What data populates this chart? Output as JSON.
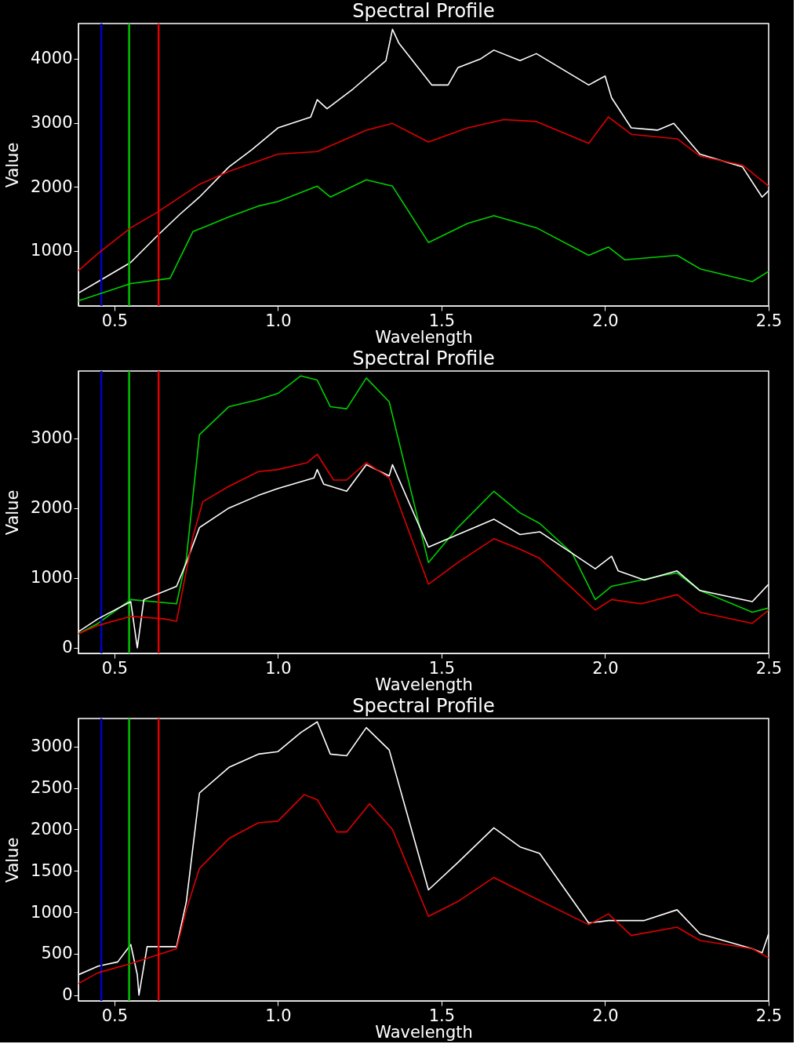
{
  "chart_data": [
    {
      "type": "line",
      "title": "Spectral Profile",
      "xlabel": "Wavelength",
      "ylabel": "Value",
      "xlim": [
        0.39,
        2.5
      ],
      "ylim": [
        140,
        4550
      ],
      "xticks": [
        {
          "value": 0.5,
          "label": "0.5"
        },
        {
          "value": 1,
          "label": "1.0"
        },
        {
          "value": 1.5,
          "label": "1.5"
        },
        {
          "value": 2,
          "label": "2.0"
        },
        {
          "value": 2.5,
          "label": "2.5"
        }
      ],
      "yticks": [
        1000,
        2000,
        3000,
        4000
      ],
      "grid": false,
      "ref_lines": [
        {
          "axis": "x",
          "value": 0.46,
          "color": "#0000c8"
        },
        {
          "axis": "x",
          "value": 0.545,
          "color": "#00c000"
        },
        {
          "axis": "x",
          "value": 0.635,
          "color": "#e00000"
        }
      ],
      "series": [
        {
          "color": "#ffffff",
          "x": [
            0.39,
            0.45,
            0.55,
            0.63,
            0.7,
            0.76,
            0.85,
            0.92,
            1.0,
            1.1,
            1.12,
            1.15,
            1.23,
            1.33,
            1.35,
            1.37,
            1.47,
            1.52,
            1.55,
            1.62,
            1.66,
            1.74,
            1.79,
            1.95,
            2.0,
            2.02,
            2.08,
            2.16,
            2.21,
            2.29,
            2.42,
            2.48,
            2.5
          ],
          "values": [
            340,
            520,
            820,
            1230,
            1570,
            1840,
            2310,
            2580,
            2920,
            3090,
            3360,
            3220,
            3530,
            3970,
            4460,
            4240,
            3590,
            3590,
            3860,
            4000,
            4135,
            3970,
            4080,
            3590,
            3730,
            3390,
            2920,
            2885,
            2990,
            2510,
            2310,
            1840,
            1940
          ]
        },
        {
          "color": "#e00000",
          "x": [
            0.39,
            0.45,
            0.55,
            0.63,
            0.76,
            0.85,
            1.0,
            1.12,
            1.27,
            1.35,
            1.46,
            1.58,
            1.69,
            1.79,
            1.95,
            2.01,
            2.08,
            2.22,
            2.29,
            2.42,
            2.5
          ],
          "values": [
            690,
            960,
            1360,
            1600,
            2040,
            2240,
            2510,
            2550,
            2885,
            2990,
            2700,
            2920,
            3050,
            3020,
            2680,
            3090,
            2820,
            2750,
            2480,
            2340,
            2010
          ]
        },
        {
          "color": "#00d000",
          "x": [
            0.39,
            0.45,
            0.55,
            0.67,
            0.74,
            0.85,
            0.94,
            1.0,
            1.12,
            1.16,
            1.27,
            1.35,
            1.46,
            1.58,
            1.66,
            1.79,
            1.95,
            2.01,
            2.06,
            2.22,
            2.29,
            2.45,
            2.5
          ],
          "values": [
            220,
            320,
            490,
            570,
            1300,
            1530,
            1700,
            1770,
            2010,
            1840,
            2110,
            2010,
            1130,
            1430,
            1550,
            1360,
            930,
            1060,
            860,
            930,
            720,
            520,
            680
          ]
        }
      ]
    },
    {
      "type": "line",
      "title": "Spectral Profile",
      "xlabel": "Wavelength",
      "ylabel": "Value",
      "xlim": [
        0.39,
        2.5
      ],
      "ylim": [
        -80,
        3960
      ],
      "xticks": [
        {
          "value": 0.5,
          "label": "0.5"
        },
        {
          "value": 1,
          "label": "1.0"
        },
        {
          "value": 1.5,
          "label": "1.5"
        },
        {
          "value": 2,
          "label": "2.0"
        },
        {
          "value": 2.5,
          "label": "2.5"
        }
      ],
      "yticks": [
        0,
        1000,
        2000,
        3000
      ],
      "grid": false,
      "ref_lines": [
        {
          "axis": "x",
          "value": 0.46,
          "color": "#0000c8"
        },
        {
          "axis": "x",
          "value": 0.545,
          "color": "#00c000"
        },
        {
          "axis": "x",
          "value": 0.635,
          "color": "#e00000"
        }
      ],
      "series": [
        {
          "color": "#00d000",
          "x": [
            0.39,
            0.45,
            0.55,
            0.69,
            0.72,
            0.76,
            0.85,
            0.94,
            1.0,
            1.07,
            1.12,
            1.16,
            1.21,
            1.27,
            1.34,
            1.46,
            1.55,
            1.66,
            1.74,
            1.8,
            1.9,
            1.97,
            2.02,
            2.18,
            2.22,
            2.29,
            2.45,
            2.5
          ],
          "values": [
            200,
            350,
            690,
            630,
            1280,
            3050,
            3450,
            3550,
            3640,
            3890,
            3830,
            3450,
            3420,
            3860,
            3520,
            1220,
            1720,
            2240,
            1930,
            1780,
            1350,
            690,
            880,
            1040,
            1070,
            820,
            510,
            570
          ]
        },
        {
          "color": "#ffffff",
          "x": [
            0.39,
            0.45,
            0.55,
            0.57,
            0.59,
            0.69,
            0.72,
            0.76,
            0.85,
            0.94,
            1.0,
            1.11,
            1.12,
            1.14,
            1.21,
            1.27,
            1.34,
            1.35,
            1.46,
            1.55,
            1.66,
            1.74,
            1.8,
            1.9,
            1.97,
            2.02,
            2.04,
            2.12,
            2.22,
            2.29,
            2.45,
            2.5
          ],
          "values": [
            230,
            415,
            660,
            0,
            690,
            880,
            1220,
            1720,
            2000,
            2180,
            2280,
            2430,
            2550,
            2340,
            2240,
            2620,
            2460,
            2620,
            1440,
            1620,
            1840,
            1620,
            1660,
            1350,
            1130,
            1310,
            1100,
            970,
            1100,
            820,
            660,
            910
          ]
        },
        {
          "color": "#e00000",
          "x": [
            0.39,
            0.45,
            0.55,
            0.65,
            0.69,
            0.74,
            0.77,
            0.85,
            0.94,
            1.0,
            1.09,
            1.12,
            1.17,
            1.21,
            1.27,
            1.34,
            1.46,
            1.55,
            1.66,
            1.74,
            1.8,
            1.9,
            1.97,
            2.02,
            2.11,
            2.22,
            2.29,
            2.45,
            2.5
          ],
          "values": [
            200,
            320,
            450,
            415,
            380,
            1590,
            2090,
            2310,
            2520,
            2550,
            2650,
            2770,
            2400,
            2400,
            2650,
            2430,
            910,
            1220,
            1560,
            1410,
            1280,
            850,
            540,
            690,
            630,
            760,
            510,
            350,
            540
          ]
        }
      ]
    },
    {
      "type": "line",
      "title": "Spectral Profile",
      "xlabel": "Wavelength",
      "ylabel": "Value",
      "xlim": [
        0.39,
        2.5
      ],
      "ylim": [
        -70,
        3340
      ],
      "xticks": [
        {
          "value": 0.5,
          "label": "0.5"
        },
        {
          "value": 1,
          "label": "1.0"
        },
        {
          "value": 1.5,
          "label": "1.5"
        },
        {
          "value": 2,
          "label": "2.0"
        },
        {
          "value": 2.5,
          "label": "2.5"
        }
      ],
      "yticks": [
        0,
        500,
        1000,
        1500,
        2000,
        2500,
        3000
      ],
      "grid": false,
      "ref_lines": [
        {
          "axis": "x",
          "value": 0.46,
          "color": "#0000c8"
        },
        {
          "axis": "x",
          "value": 0.545,
          "color": "#00c000"
        },
        {
          "axis": "x",
          "value": 0.635,
          "color": "#e00000"
        }
      ],
      "series": [
        {
          "color": "#ffffff",
          "x": [
            0.39,
            0.45,
            0.51,
            0.55,
            0.57,
            0.575,
            0.6,
            0.69,
            0.72,
            0.76,
            0.85,
            0.94,
            1.0,
            1.07,
            1.12,
            1.16,
            1.21,
            1.27,
            1.34,
            1.46,
            1.55,
            1.66,
            1.74,
            1.8,
            1.95,
            2.01,
            2.12,
            2.22,
            2.29,
            2.45,
            2.48,
            2.5
          ],
          "values": [
            245,
            350,
            400,
            610,
            245,
            0,
            585,
            585,
            1130,
            2440,
            2750,
            2910,
            2940,
            3170,
            3300,
            2910,
            2890,
            3230,
            2960,
            1270,
            1600,
            2020,
            1790,
            1710,
            870,
            900,
            900,
            1030,
            740,
            560,
            510,
            740
          ]
        },
        {
          "color": "#e00000",
          "x": [
            0.39,
            0.45,
            0.55,
            0.69,
            0.72,
            0.76,
            0.85,
            0.94,
            1.0,
            1.08,
            1.12,
            1.18,
            1.21,
            1.28,
            1.35,
            1.46,
            1.55,
            1.66,
            1.75,
            1.95,
            2.01,
            2.08,
            2.22,
            2.29,
            2.45,
            2.5
          ],
          "values": [
            140,
            270,
            380,
            560,
            1030,
            1530,
            1890,
            2080,
            2100,
            2420,
            2360,
            1970,
            1970,
            2310,
            2000,
            950,
            1130,
            1420,
            1240,
            850,
            980,
            720,
            820,
            660,
            560,
            450
          ]
        }
      ]
    }
  ]
}
